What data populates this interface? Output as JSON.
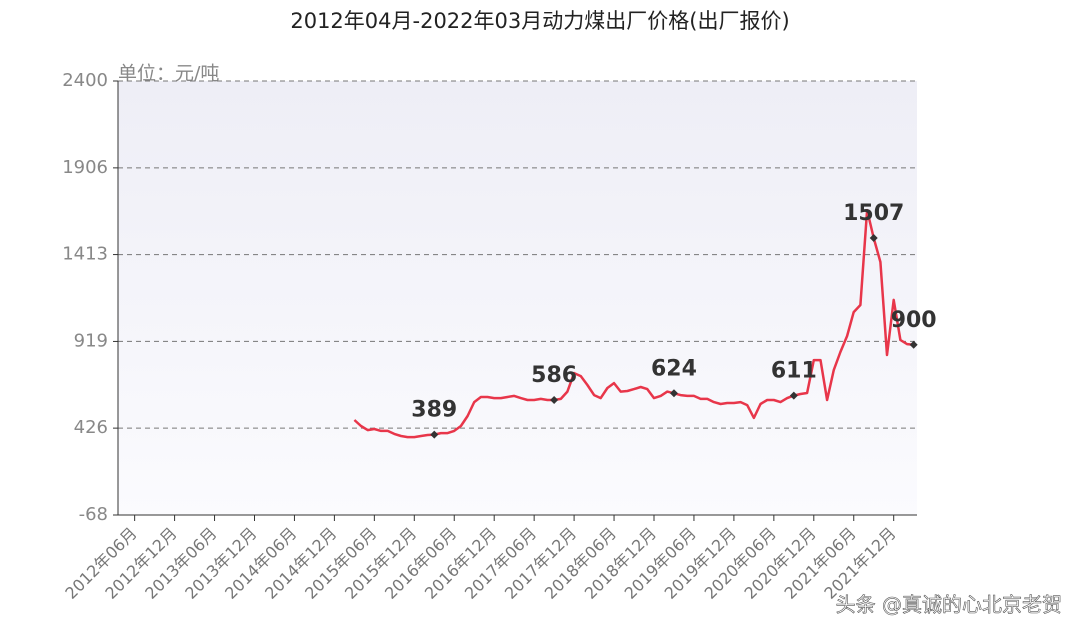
{
  "chart_data": {
    "type": "line",
    "title": "2012年04月-2022年03月动力煤出厂价格(出厂报价)",
    "y_unit_label": "单位：元/吨",
    "watermark": "头条 @真诚的心北京老贺",
    "categories": [
      null,
      null,
      "2012年06月",
      null,
      null,
      null,
      null,
      null,
      "2012年12月",
      null,
      null,
      null,
      null,
      null,
      "2013年06月",
      null,
      null,
      null,
      null,
      null,
      "2013年12月",
      null,
      null,
      null,
      null,
      null,
      "2014年06月",
      null,
      null,
      null,
      null,
      null,
      "2014年12月",
      null,
      null,
      null,
      null,
      null,
      "2015年06月",
      null,
      null,
      null,
      null,
      null,
      "2015年12月",
      null,
      null,
      null,
      null,
      null,
      "2016年06月",
      null,
      null,
      null,
      null,
      null,
      "2016年12月",
      null,
      null,
      null,
      null,
      null,
      "2017年06月",
      null,
      null,
      null,
      null,
      null,
      "2017年12月",
      null,
      null,
      null,
      null,
      null,
      "2018年06月",
      null,
      null,
      null,
      null,
      null,
      "2018年12月",
      null,
      null,
      null,
      null,
      null,
      "2019年06月",
      null,
      null,
      null,
      null,
      null,
      "2019年12月",
      null,
      null,
      null,
      null,
      null,
      "2020年06月",
      null,
      null,
      null,
      null,
      null,
      "2020年12月",
      null,
      null,
      null,
      null,
      null,
      "2021年06月",
      null,
      null,
      null,
      null,
      null,
      "2021年12月",
      null,
      null,
      null
    ],
    "values": [
      null,
      null,
      null,
      null,
      null,
      null,
      null,
      null,
      null,
      null,
      null,
      null,
      null,
      null,
      null,
      null,
      null,
      null,
      null,
      null,
      null,
      null,
      null,
      null,
      null,
      null,
      null,
      null,
      null,
      null,
      null,
      null,
      null,
      null,
      null,
      472,
      438,
      415,
      421,
      410,
      410,
      393,
      381,
      375,
      375,
      381,
      387,
      389,
      398,
      398,
      410,
      438,
      495,
      574,
      603,
      603,
      597,
      597,
      603,
      609,
      597,
      586,
      586,
      592,
      586,
      586,
      592,
      634,
      739,
      722,
      671,
      614,
      597,
      654,
      682,
      634,
      637,
      648,
      660,
      648,
      597,
      609,
      634,
      624,
      614,
      609,
      609,
      592,
      592,
      574,
      563,
      569,
      569,
      574,
      557,
      484,
      563,
      586,
      586,
      574,
      597,
      611,
      620,
      626,
      813,
      813,
      586,
      757,
      859,
      950,
      1086,
      1126,
      1666,
      1507,
      1371,
      842,
      1155,
      927,
      904,
      900
    ],
    "value_labels": [
      null,
      null,
      null,
      null,
      null,
      null,
      null,
      null,
      null,
      null,
      null,
      null,
      null,
      null,
      null,
      null,
      null,
      null,
      null,
      null,
      null,
      null,
      null,
      null,
      null,
      null,
      null,
      null,
      null,
      null,
      null,
      null,
      null,
      null,
      null,
      null,
      null,
      null,
      null,
      null,
      null,
      null,
      null,
      null,
      null,
      null,
      null,
      "389",
      null,
      null,
      null,
      null,
      null,
      null,
      null,
      null,
      null,
      null,
      null,
      null,
      null,
      null,
      null,
      null,
      null,
      "586",
      null,
      null,
      null,
      null,
      null,
      null,
      null,
      null,
      null,
      null,
      null,
      null,
      null,
      null,
      null,
      null,
      null,
      "624",
      null,
      null,
      null,
      null,
      null,
      null,
      null,
      null,
      null,
      null,
      null,
      null,
      null,
      null,
      null,
      null,
      null,
      "611",
      null,
      null,
      null,
      null,
      null,
      null,
      null,
      null,
      null,
      null,
      null,
      "1507",
      null,
      null,
      null,
      null,
      null,
      "900"
    ],
    "color": "#e8364a",
    "ylim": [
      -68,
      2400
    ],
    "yticks": [
      -68,
      426,
      919,
      1413,
      1906,
      2400
    ],
    "grid": true
  }
}
